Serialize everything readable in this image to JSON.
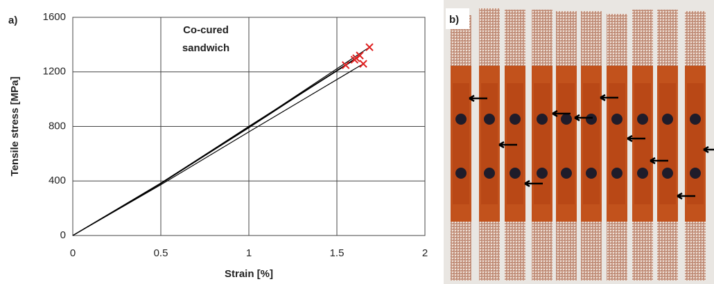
{
  "chart_data": {
    "type": "line",
    "panel_label": "a)",
    "annotation": [
      "Co-cured",
      "sandwich"
    ],
    "x_label": "Strain [%]",
    "y_label": "Tensile stress [MPa]",
    "xlim": [
      0,
      2
    ],
    "ylim": [
      0,
      1600
    ],
    "xticks": [
      0,
      0.5,
      1,
      1.5,
      2
    ],
    "yticks": [
      0,
      400,
      800,
      1200,
      1600
    ],
    "grid": true,
    "series": [
      {
        "color": "#000000",
        "x": [
          0,
          0.5,
          1,
          1.685
        ],
        "values": [
          0,
          385,
          795,
          1381
        ]
      },
      {
        "color": "#000000",
        "x": [
          0,
          0.5,
          1,
          1.63
        ],
        "values": [
          0,
          380,
          790,
          1320
        ]
      },
      {
        "color": "#000000",
        "x": [
          0,
          0.5,
          1,
          1.65
        ],
        "values": [
          0,
          372,
          760,
          1259
        ]
      },
      {
        "color": "#000000",
        "x": [
          0,
          0.5,
          1,
          1.55
        ],
        "values": [
          0,
          382,
          800,
          1249
        ]
      },
      {
        "color": "#000000",
        "x": [
          0,
          0.5,
          1,
          1.6
        ],
        "values": [
          0,
          380,
          795,
          1289
        ]
      },
      {
        "color": "#000000",
        "x": [
          0,
          0.5,
          1,
          1.61
        ],
        "values": [
          0,
          383,
          800,
          1300
        ]
      },
      {
        "color": "#e02020",
        "marker": "x",
        "line": false,
        "x": [
          1.685,
          1.63,
          1.65,
          1.55,
          1.6,
          1.61
        ],
        "values": [
          1381,
          1320,
          1259,
          1249,
          1289,
          1300
        ]
      }
    ]
  },
  "photo": {
    "panel_label": "b)"
  }
}
